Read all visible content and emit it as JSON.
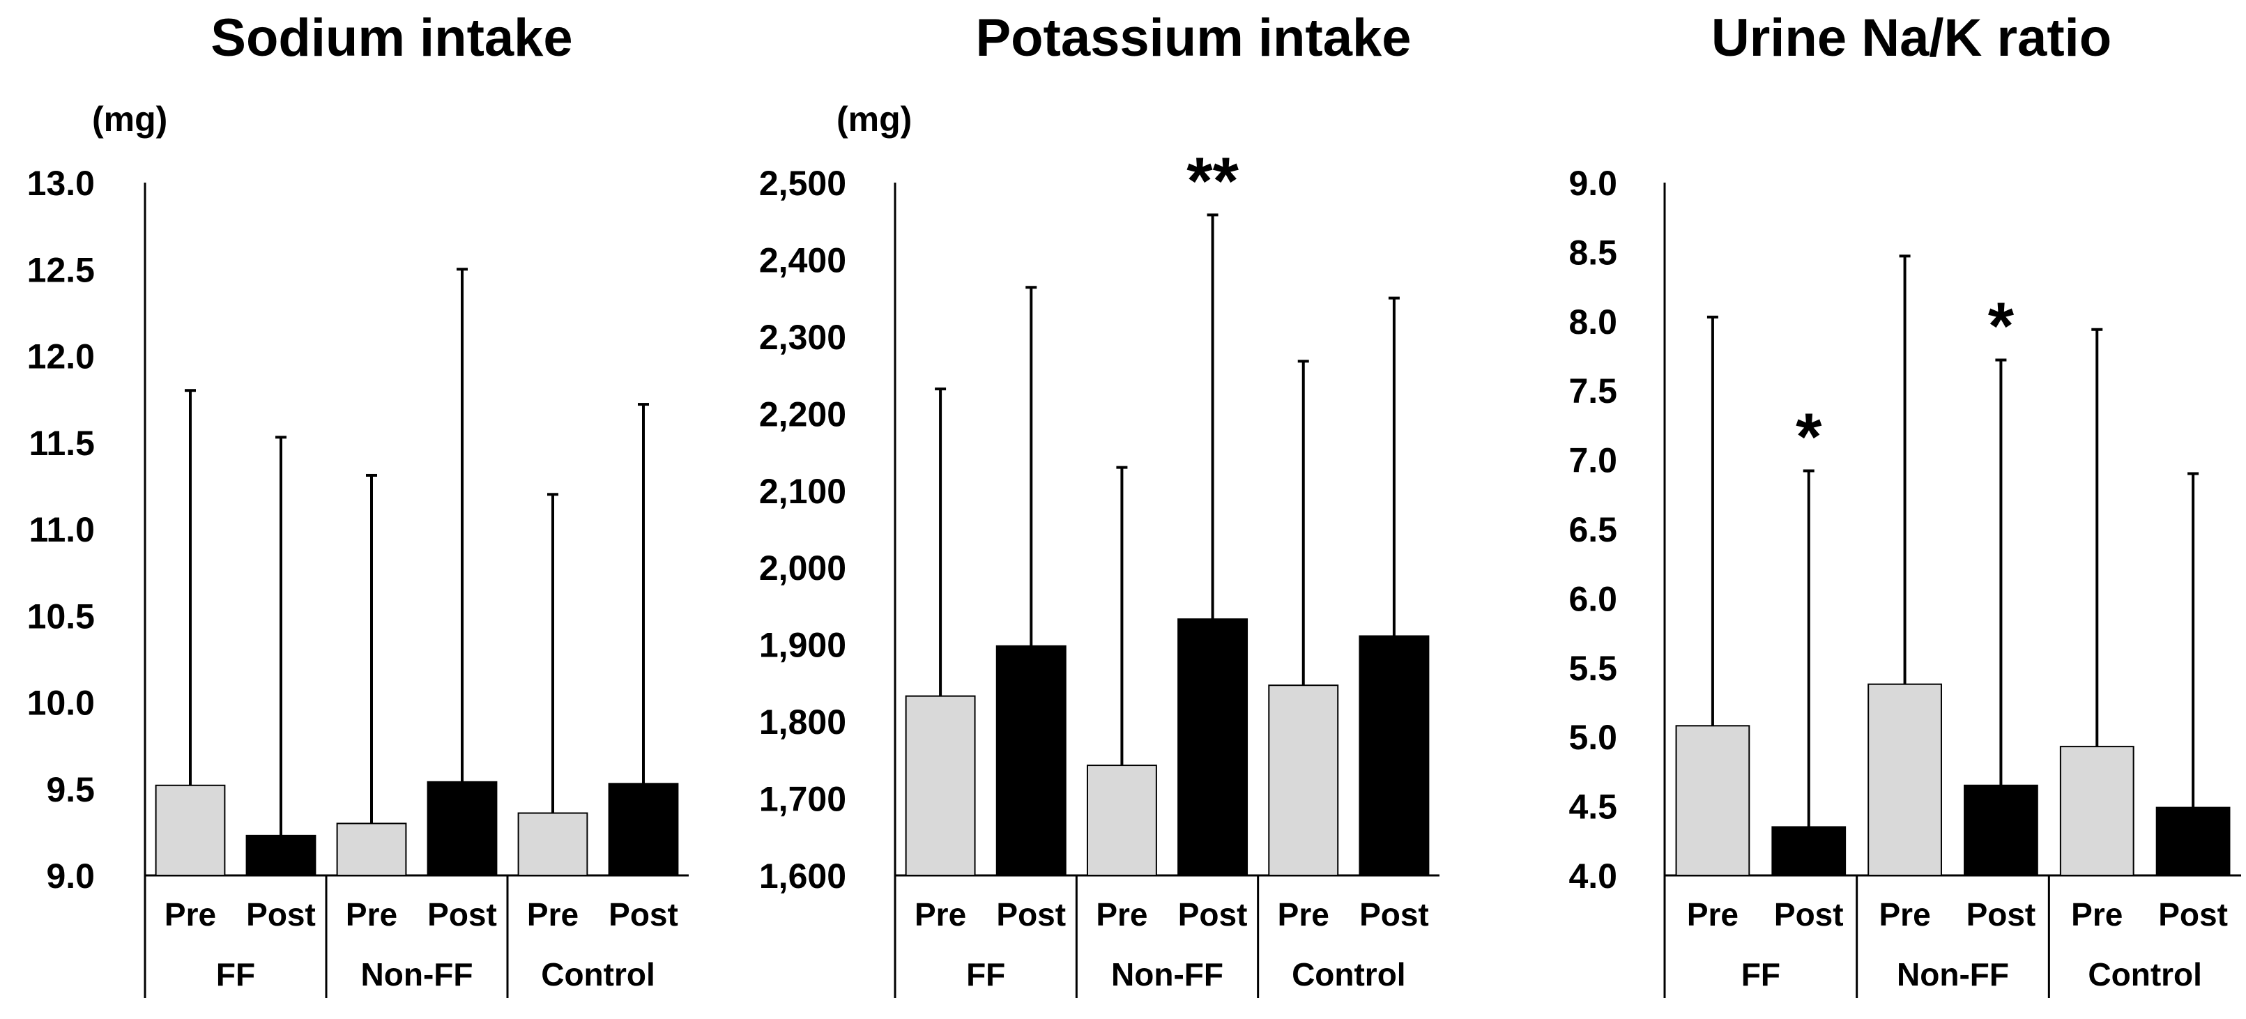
{
  "colors": {
    "pre": "#d9d9d9",
    "post": "#000000",
    "axis": "#000000",
    "background": "#ffffff"
  },
  "chart_data": [
    {
      "type": "bar",
      "title": "Sodium intake",
      "unit_label": "(mg)",
      "ylim": [
        9.0,
        13.0
      ],
      "ytick_values": [
        9.0,
        9.5,
        10.0,
        10.5,
        11.0,
        11.5,
        12.0,
        12.5,
        13.0
      ],
      "ytick_labels": [
        "9.0",
        "9.5",
        "10.0",
        "10.5",
        "11.0",
        "11.5",
        "12.0",
        "12.5",
        "13.0"
      ],
      "groups": [
        "FF",
        "Non-FF",
        "Control"
      ],
      "categories": [
        "Pre",
        "Post",
        "Pre",
        "Post",
        "Pre",
        "Post"
      ],
      "values": [
        9.52,
        9.23,
        9.3,
        9.54,
        9.36,
        9.53
      ],
      "error_upper": [
        11.8,
        11.53,
        11.31,
        12.5,
        11.2,
        11.72
      ],
      "significance": [
        "",
        "",
        "",
        "",
        "",
        ""
      ]
    },
    {
      "type": "bar",
      "title": "Potassium intake",
      "unit_label": "(mg)",
      "ylim": [
        1600,
        2500
      ],
      "ytick_values": [
        1600,
        1700,
        1800,
        1900,
        2000,
        2100,
        2200,
        2300,
        2400,
        2500
      ],
      "ytick_labels": [
        "1,600",
        "1,700",
        "1,800",
        "1,900",
        "2,000",
        "2,100",
        "2,200",
        "2,300",
        "2,400",
        "2,500"
      ],
      "groups": [
        "FF",
        "Non-FF",
        "Control"
      ],
      "categories": [
        "Pre",
        "Post",
        "Pre",
        "Post",
        "Pre",
        "Post"
      ],
      "values": [
        1833,
        1898,
        1743,
        1933,
        1847,
        1911
      ],
      "error_upper": [
        2232,
        2364,
        2130,
        2458,
        2268,
        2350
      ],
      "significance": [
        "",
        "",
        "",
        "**",
        "",
        ""
      ]
    },
    {
      "type": "bar",
      "title": "Urine Na/K ratio",
      "unit_label": "",
      "ylim": [
        4.0,
        9.0
      ],
      "ytick_values": [
        4.0,
        4.5,
        5.0,
        5.5,
        6.0,
        6.5,
        7.0,
        7.5,
        8.0,
        8.5,
        9.0
      ],
      "ytick_labels": [
        "4.0",
        "4.5",
        "5.0",
        "5.5",
        "6.0",
        "6.5",
        "7.0",
        "7.5",
        "8.0",
        "8.5",
        "9.0"
      ],
      "groups": [
        "FF",
        "Non-FF",
        "Control"
      ],
      "categories": [
        "Pre",
        "Post",
        "Pre",
        "Post",
        "Pre",
        "Post"
      ],
      "values": [
        5.08,
        4.35,
        5.38,
        4.65,
        4.93,
        4.49
      ],
      "error_upper": [
        8.03,
        6.92,
        8.47,
        7.72,
        7.94,
        6.9
      ],
      "significance": [
        "",
        "*",
        "",
        "*",
        "",
        ""
      ]
    }
  ]
}
